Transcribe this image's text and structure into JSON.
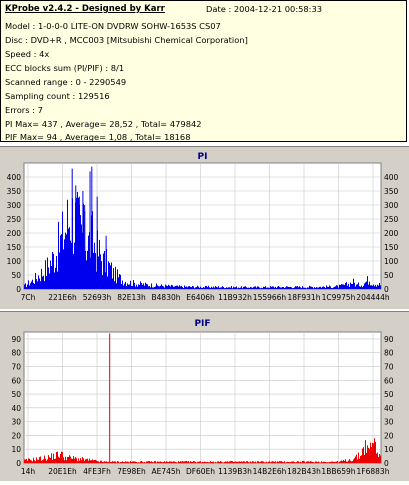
{
  "info": {
    "title": "KProbe v2.4.2 - Designed by Karr",
    "date": "Date : 2004-12-21 00:58:33",
    "lines": [
      "Model : 1-0-0-0 LITE-ON DVDRW SOHW-1653S CS07",
      "Disc : DVD+R , MCC003 [Mitsubishi Chemical Corporation]",
      "Speed : 4x",
      "ECC blocks sum (PI/PIF) : 8/1",
      "Scanned range : 0 - 2290549",
      "Sampling count : 129516",
      "Errors : 7",
      "PI Max= 437 , Average= 28,52 , Total= 479842",
      "PIF Max= 94 , Average= 1,08 , Total= 18168"
    ]
  },
  "colors": {
    "pi_series": "#0000ee",
    "pif_series": "#ee0000",
    "title_text": "#000080",
    "panel_bg": "#d4d0c8",
    "plot_bg": "#ffffff",
    "grid": "#c8c8c8"
  },
  "chart_data": [
    {
      "type": "area",
      "title": "PI",
      "ylim": [
        0,
        450
      ],
      "yticks": [
        0,
        50,
        100,
        150,
        200,
        250,
        300,
        350,
        400
      ],
      "xlim": [
        0,
        2290549
      ],
      "xtick_labels": [
        "7Ch",
        "221E6h",
        "52693h",
        "82E13h",
        "B4830h",
        "E6406h",
        "11B932h",
        "155966h",
        "18F931h",
        "1C9975h",
        "204444h"
      ],
      "grid": true,
      "series": [
        {
          "points": [
            [
              0.0,
              12
            ],
            [
              0.01,
              22
            ],
            [
              0.02,
              30
            ],
            [
              0.03,
              40
            ],
            [
              0.04,
              55
            ],
            [
              0.05,
              65
            ],
            [
              0.06,
              80
            ],
            [
              0.07,
              100
            ],
            [
              0.08,
              120
            ],
            [
              0.09,
              150
            ],
            [
              0.1,
              180
            ],
            [
              0.11,
              220
            ],
            [
              0.12,
              260
            ],
            [
              0.13,
              300
            ],
            [
              0.14,
              280
            ],
            [
              0.15,
              250
            ],
            [
              0.16,
              230
            ],
            [
              0.17,
              200
            ],
            [
              0.18,
              180
            ],
            [
              0.19,
              200
            ],
            [
              0.2,
              160
            ],
            [
              0.21,
              140
            ],
            [
              0.22,
              110
            ],
            [
              0.23,
              100
            ],
            [
              0.24,
              85
            ],
            [
              0.25,
              60
            ],
            [
              0.26,
              50
            ],
            [
              0.27,
              40
            ],
            [
              0.28,
              32
            ],
            [
              0.29,
              28
            ],
            [
              0.3,
              24
            ],
            [
              0.32,
              20
            ],
            [
              0.34,
              17
            ],
            [
              0.36,
              15
            ],
            [
              0.38,
              13
            ],
            [
              0.4,
              12
            ],
            [
              0.42,
              10
            ],
            [
              0.45,
              9
            ],
            [
              0.5,
              8
            ],
            [
              0.55,
              8
            ],
            [
              0.6,
              7
            ],
            [
              0.65,
              7
            ],
            [
              0.7,
              8
            ],
            [
              0.75,
              8
            ],
            [
              0.8,
              8
            ],
            [
              0.85,
              9
            ],
            [
              0.88,
              10
            ],
            [
              0.91,
              20
            ],
            [
              0.92,
              30
            ],
            [
              0.93,
              15
            ],
            [
              0.95,
              20
            ],
            [
              0.965,
              40
            ],
            [
              0.975,
              25
            ],
            [
              0.99,
              20
            ],
            [
              1.0,
              15
            ]
          ],
          "peaks": [
            [
              0.135,
              430
            ],
            [
              0.145,
              370
            ],
            [
              0.155,
              330
            ],
            [
              0.165,
              350
            ],
            [
              0.17,
              300
            ],
            [
              0.185,
              420
            ],
            [
              0.19,
              437
            ],
            [
              0.205,
              330
            ],
            [
              0.23,
              190
            ],
            [
              0.17,
              280
            ]
          ]
        }
      ]
    },
    {
      "type": "area",
      "title": "PIF",
      "ylim": [
        0,
        95
      ],
      "yticks": [
        0,
        10,
        20,
        30,
        40,
        50,
        60,
        70,
        80,
        90
      ],
      "xlim": [
        0,
        2290549
      ],
      "xtick_labels": [
        "14h",
        "20E1Eh",
        "4FE3Fh",
        "7E98Eh",
        "AE745h",
        "DF60Eh",
        "1139B3h",
        "14B2E6h",
        "182B43h",
        "1BB659h",
        "1F6883h"
      ],
      "grid": true,
      "series": [
        {
          "points": [
            [
              0.0,
              2
            ],
            [
              0.03,
              3
            ],
            [
              0.06,
              4
            ],
            [
              0.09,
              6
            ],
            [
              0.1,
              8
            ],
            [
              0.11,
              5
            ],
            [
              0.13,
              4
            ],
            [
              0.16,
              3
            ],
            [
              0.19,
              2
            ],
            [
              0.22,
              1
            ],
            [
              0.3,
              1
            ],
            [
              0.4,
              1
            ],
            [
              0.5,
              1
            ],
            [
              0.6,
              1
            ],
            [
              0.7,
              1
            ],
            [
              0.8,
              1
            ],
            [
              0.88,
              1
            ],
            [
              0.92,
              3
            ],
            [
              0.94,
              6
            ],
            [
              0.955,
              15
            ],
            [
              0.965,
              8
            ],
            [
              0.975,
              20
            ],
            [
              0.985,
              12
            ],
            [
              0.995,
              6
            ],
            [
              1.0,
              3
            ]
          ],
          "spikes": [
            [
              0.24,
              94
            ]
          ]
        }
      ]
    }
  ]
}
